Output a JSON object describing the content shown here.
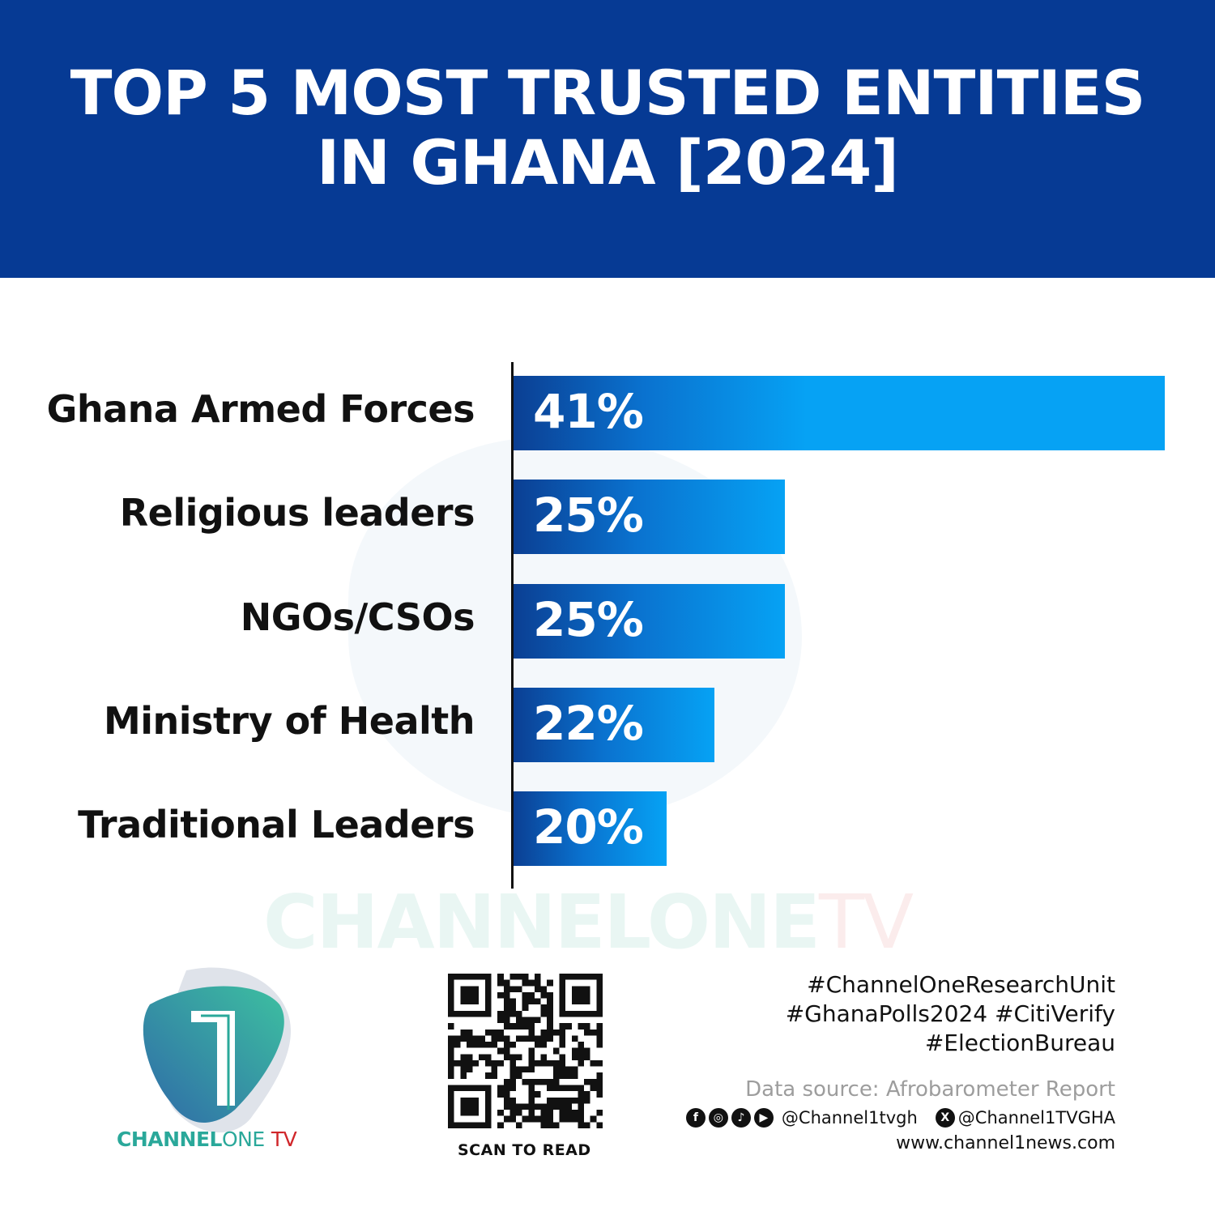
{
  "header": {
    "title_line1": "TOP 5 MOST TRUSTED ENTITIES",
    "title_line2": "IN GHANA [2024]"
  },
  "chart_data": {
    "type": "bar",
    "orientation": "horizontal",
    "title": "TOP 5 MOST TRUSTED ENTITIES IN GHANA [2024]",
    "categories": [
      "Ghana Armed Forces",
      "Religious leaders",
      "NGOs/CSOs",
      "Ministry of Health",
      "Traditional Leaders"
    ],
    "values": [
      41,
      25,
      25,
      22,
      20
    ],
    "labels": [
      "41%",
      "25%",
      "25%",
      "22%",
      "20%"
    ],
    "unit": "%",
    "grid": false,
    "colors": {
      "bar_start": "#0b3f93",
      "bar_end": "#06a2f4"
    }
  },
  "watermark": {
    "brand": "CHANNELONE",
    "tv": "TV"
  },
  "logo": {
    "part1": "CHANNEL",
    "part2": "ONE",
    "part3": "TV",
    "colors": {
      "teal": "#2aa89a",
      "red": "#d0262a"
    }
  },
  "qr": {
    "caption": "SCAN TO READ"
  },
  "footer": {
    "hashtags": [
      "#ChannelOneResearchUnit",
      "#GhanaPolls2024 #CitiVerify",
      "#ElectionBureau"
    ],
    "source": "Data source: Afrobarometer Report",
    "social_icons": [
      "facebook-icon",
      "instagram-icon",
      "tiktok-icon",
      "youtube-icon"
    ],
    "handle1": "@Channel1tvgh",
    "handle2": "@Channel1TVGHA",
    "website": "www.channel1news.com"
  }
}
